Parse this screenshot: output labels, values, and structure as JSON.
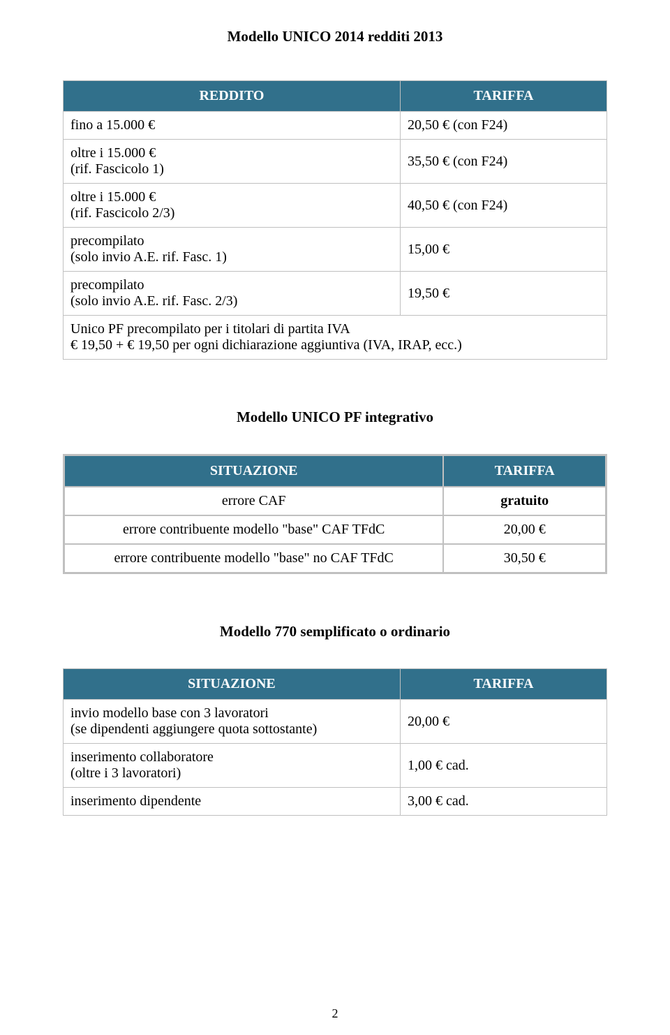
{
  "colors": {
    "header_bg": "#31708b",
    "header_fg": "#ffffff",
    "border": "#c0c0c0",
    "text": "#000000",
    "background": "#ffffff"
  },
  "doc": {
    "title": "Modello UNICO 2014 redditi 2013",
    "page_number": "2"
  },
  "table1": {
    "header_left": "REDDITO",
    "header_right": "TARIFFA",
    "rows": [
      {
        "left": "fino a 15.000 €",
        "right": "20,50 € (con F24)"
      },
      {
        "left": "oltre i 15.000 €\n(rif. Fascicolo 1)",
        "right": "35,50 € (con F24)"
      },
      {
        "left": "oltre i 15.000 €\n(rif. Fascicolo 2/3)",
        "right": "40,50 € (con F24)"
      },
      {
        "left": "precompilato\n(solo invio A.E. rif. Fasc. 1)",
        "right": "15,00 €"
      },
      {
        "left": "precompilato\n(solo invio A.E. rif. Fasc. 2/3)",
        "right": "19,50 €"
      }
    ],
    "footer_full": "Unico PF precompilato per i titolari di partita IVA\n€ 19,50 + € 19,50 per ogni dichiarazione aggiuntiva (IVA, IRAP, ecc.)"
  },
  "section2": {
    "title": "Modello UNICO PF integrativo"
  },
  "table2": {
    "header_left": "SITUAZIONE",
    "header_right": "TARIFFA",
    "rows": [
      {
        "left": "errore CAF",
        "right": "gratuito",
        "right_bold": true
      },
      {
        "left": "errore contribuente modello \"base\" CAF TFdC",
        "right": "20,00 €"
      },
      {
        "left": "errore contribuente modello \"base\" no CAF TFdC",
        "right": "30,50 €"
      }
    ]
  },
  "section3": {
    "title": "Modello 770 semplificato o ordinario"
  },
  "table3": {
    "header_left": "SITUAZIONE",
    "header_right": "TARIFFA",
    "rows": [
      {
        "left": "invio modello base con 3 lavoratori\n(se dipendenti aggiungere quota sottostante)",
        "right": "20,00 €"
      },
      {
        "left": "inserimento collaboratore\n(oltre i 3 lavoratori)",
        "right": "1,00 € cad."
      },
      {
        "left": "inserimento dipendente",
        "right": "3,00 € cad."
      }
    ]
  }
}
